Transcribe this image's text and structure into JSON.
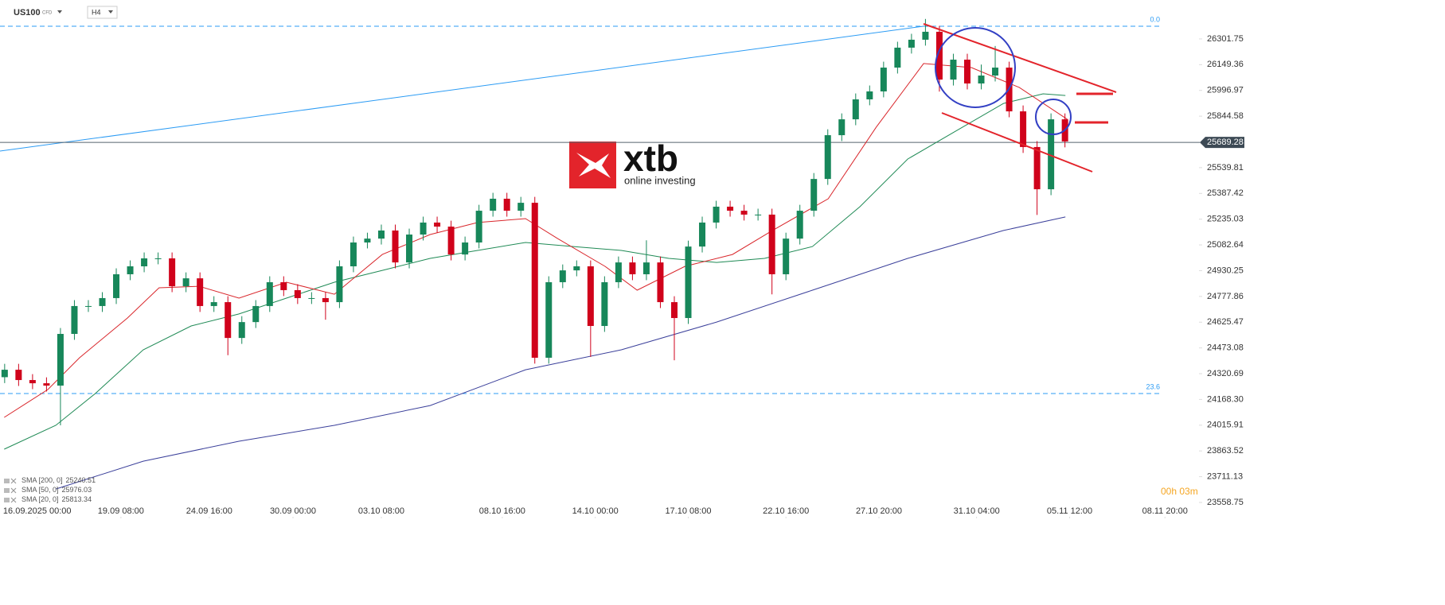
{
  "header": {
    "symbol": "US100",
    "symbol_tag": "CFD",
    "timeframe": "H4"
  },
  "logo": {
    "name": "xtb",
    "tagline": "online investing"
  },
  "timer": "00h 03m",
  "chart_data": {
    "type": "candlestick",
    "up_color": "#17875a",
    "down_color": "#d0021b",
    "xlim": [
      0,
      252
    ],
    "ylim": [
      23474,
      26532
    ],
    "xticks": [
      {
        "value": 8,
        "label": "16.09.2025  00:00"
      },
      {
        "value": 26,
        "label": "19.09 08:00"
      },
      {
        "value": 45,
        "label": "24.09 16:00"
      },
      {
        "value": 63,
        "label": "30.09 00:00"
      },
      {
        "value": 82,
        "label": "03.10 08:00"
      },
      {
        "value": 108,
        "label": "08.10 16:00"
      },
      {
        "value": 128,
        "label": "14.10 00:00"
      },
      {
        "value": 148,
        "label": "17.10 08:00"
      },
      {
        "value": 169,
        "label": "22.10 16:00"
      },
      {
        "value": 189,
        "label": "27.10 20:00"
      },
      {
        "value": 210,
        "label": "31.10 04:00"
      },
      {
        "value": 230,
        "label": "05.11 12:00"
      },
      {
        "value": 250.5,
        "label": "08.11 20:00"
      }
    ],
    "yticks": [
      26301.75,
      26149.36,
      25996.97,
      25844.58,
      25539.81,
      25387.42,
      25235.03,
      25082.64,
      24930.25,
      24777.86,
      24625.47,
      24473.08,
      24320.69,
      {
        "value": 24168.3,
        "label": "24168.30"
      },
      24015.91,
      23863.52,
      23711.13,
      23558.75
    ],
    "current_price": 25689.28,
    "fib_levels": [
      {
        "label": "0.0",
        "price": 26377
      },
      {
        "label": "23.6",
        "price": 24203
      }
    ],
    "x": [
      1,
      4,
      7,
      10,
      13,
      16,
      19,
      22,
      25,
      28,
      31,
      34,
      37,
      40,
      43,
      46,
      49,
      52,
      55,
      58,
      61,
      64,
      67,
      70,
      73,
      76,
      79,
      82,
      85,
      88,
      91,
      94,
      97,
      100,
      103,
      106,
      109,
      112,
      115,
      118,
      121,
      124,
      127,
      130,
      133,
      136,
      139,
      142,
      145,
      148,
      151,
      154,
      157,
      160,
      163,
      166,
      169,
      172,
      175,
      178,
      181,
      184,
      187,
      190,
      193,
      196,
      199,
      202,
      205,
      208,
      211,
      214,
      217,
      220,
      223,
      226,
      229
    ],
    "open": [
      24300,
      24344,
      24283,
      24264,
      24250,
      24556,
      24721,
      24721,
      24768,
      24909,
      24956,
      25003,
      25003,
      24838,
      24885,
      24721,
      24744,
      24532,
      24626,
      24721,
      24862,
      24815,
      24768,
      24768,
      24744,
      24956,
      25097,
      25120,
      25168,
      24979,
      25144,
      25215,
      25191,
      25026,
      25097,
      25285,
      25356,
      25285,
      25332,
      24415,
      24862,
      24932,
      24956,
      24603,
      24862,
      24979,
      24909,
      24979,
      24744,
      24650,
      25073,
      25215,
      25309,
      25285,
      25262,
      25262,
      24909,
      25120,
      25285,
      25473,
      25732,
      25826,
      25944,
      25991,
      26132,
      26250,
      26297,
      26344,
      26061,
      26179,
      26038,
      26085,
      26132,
      25873,
      25662,
      25412,
      25826
    ],
    "high": [
      24379,
      24379,
      24318,
      24299,
      24591,
      24756,
      24756,
      24803,
      24944,
      24991,
      25038,
      25038,
      25038,
      24920,
      24920,
      24779,
      24779,
      24661,
      24756,
      24897,
      24897,
      24850,
      24803,
      24803,
      24991,
      25132,
      25155,
      25203,
      25203,
      25179,
      25250,
      25250,
      25226,
      25132,
      25320,
      25391,
      25391,
      25367,
      25367,
      24897,
      24967,
      24991,
      24991,
      24897,
      25014,
      25014,
      25110,
      25014,
      24779,
      25108,
      25250,
      25344,
      25344,
      25320,
      25297,
      25297,
      25155,
      25320,
      25508,
      25767,
      25861,
      25979,
      26026,
      26167,
      26285,
      26332,
      26420,
      26379,
      26214,
      26214,
      26150,
      26260,
      26167,
      25908,
      25697,
      25861,
      25861
    ],
    "low": [
      24265,
      24248,
      24229,
      24215,
      24015,
      24521,
      24686,
      24686,
      24733,
      24874,
      24921,
      24968,
      24803,
      24803,
      24686,
      24686,
      24430,
      24497,
      24591,
      24686,
      24780,
      24733,
      24733,
      24640,
      24709,
      24921,
      25062,
      25085,
      24944,
      24944,
      25109,
      25156,
      24991,
      24991,
      25062,
      25250,
      25250,
      25250,
      24380,
      24380,
      24827,
      24897,
      24420,
      24568,
      24827,
      24874,
      24874,
      24709,
      24400,
      24615,
      25038,
      25180,
      25250,
      25227,
      25227,
      24790,
      24874,
      25085,
      25250,
      25438,
      25697,
      25791,
      25909,
      25956,
      26097,
      26215,
      26262,
      25990,
      26026,
      26003,
      26003,
      26050,
      25838,
      25627,
      25260,
      25377,
      25660
    ],
    "close": [
      24344,
      24283,
      24264,
      24250,
      24556,
      24721,
      24721,
      24768,
      24909,
      24956,
      25003,
      25003,
      24838,
      24885,
      24721,
      24744,
      24532,
      24626,
      24721,
      24862,
      24815,
      24768,
      24768,
      24744,
      24956,
      25097,
      25120,
      25168,
      24979,
      25144,
      25215,
      25191,
      25026,
      25097,
      25285,
      25356,
      25285,
      25332,
      24415,
      24862,
      24932,
      24956,
      24603,
      24862,
      24979,
      24909,
      24979,
      24744,
      24650,
      25073,
      25215,
      25309,
      25285,
      25262,
      25262,
      24909,
      25120,
      25285,
      25473,
      25732,
      25826,
      25944,
      25991,
      26132,
      26250,
      26297,
      26344,
      26061,
      26179,
      26038,
      26085,
      26132,
      25873,
      25662,
      25412,
      25826,
      25695
    ],
    "indicators": [
      {
        "name": "SMA [200,  0]",
        "value": 25240.51,
        "color": "#3a3f9a",
        "x": [
          12,
          30.8,
          51.4,
          71.9,
          92.5,
          113,
          133.6,
          154.1,
          174.7,
          195.2,
          215.8,
          229.1
        ],
        "values": [
          23638,
          23803,
          23921,
          24015,
          24132,
          24344,
          24462,
          24626,
          24815,
          25003,
          25168,
          25248
        ]
      },
      {
        "name": "SMA [50,  0]",
        "value": 25976.03,
        "color": "#1f8a55",
        "x": [
          0.9,
          12,
          20.5,
          30.8,
          41.1,
          51.4,
          61.6,
          71.9,
          82.2,
          92.5,
          102.7,
          113,
          123.3,
          133.6,
          143.8,
          154.1,
          164.4,
          174.7,
          184.9,
          195.2,
          205.5,
          215.8,
          224.3,
          229.1
        ],
        "values": [
          23874,
          24015,
          24203,
          24462,
          24603,
          24674,
          24768,
          24862,
          24932,
          25003,
          25050,
          25097,
          25073,
          25050,
          25003,
          24979,
          25003,
          25073,
          25309,
          25591,
          25756,
          25920,
          25977,
          25967
        ]
      },
      {
        "name": "SMA [20,  0]",
        "value": 25813.34,
        "color": "#d9262b",
        "x": [
          0.9,
          10.3,
          17.1,
          27.4,
          34.2,
          42.8,
          51.4,
          61.6,
          71.9,
          82.2,
          92.5,
          102.7,
          113,
          119.9,
          130.1,
          137,
          147.3,
          157.5,
          166.1,
          178.1,
          188.4,
          198.6,
          208.9,
          219.2,
          229.5
        ],
        "values": [
          24062,
          24227,
          24415,
          24650,
          24829,
          24838,
          24768,
          24862,
          24791,
          25026,
          25144,
          25215,
          25238,
          25120,
          24956,
          24815,
          24956,
          25026,
          25168,
          25356,
          25779,
          26156,
          26132,
          26014,
          25826
        ]
      }
    ]
  }
}
